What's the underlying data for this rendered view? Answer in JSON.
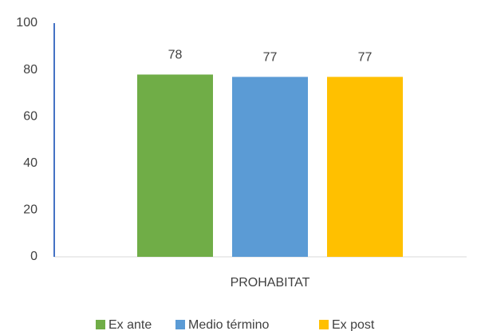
{
  "chart_data": {
    "type": "bar",
    "categories": [
      "PROHABITAT"
    ],
    "series": [
      {
        "name": "Ex ante",
        "color": "#70ad47",
        "values": [
          78
        ]
      },
      {
        "name": "Medio término",
        "color": "#5b9bd5",
        "values": [
          77
        ]
      },
      {
        "name": "Ex post",
        "color": "#ffc000",
        "values": [
          77
        ]
      }
    ],
    "ylim": [
      0,
      100
    ],
    "yticks": [
      0,
      20,
      40,
      60,
      80,
      100
    ],
    "grid": false,
    "legend": "bottom"
  }
}
